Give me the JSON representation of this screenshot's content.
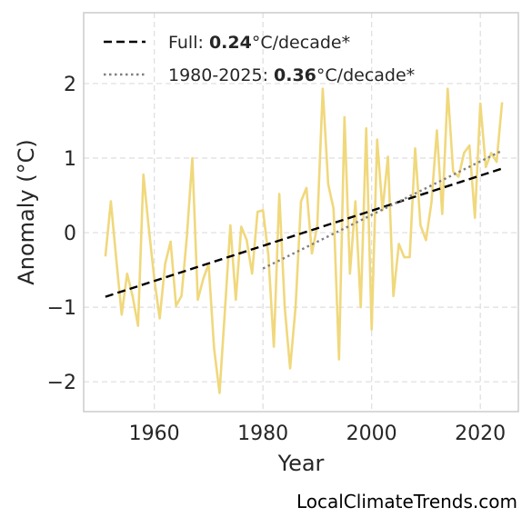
{
  "chart_data": {
    "type": "line",
    "xlabel": "Year",
    "ylabel": "Anomaly (°C)",
    "xlim": [
      1947,
      2027
    ],
    "ylim": [
      -2.4,
      2.95
    ],
    "xticks": [
      1960,
      1980,
      2000,
      2020
    ],
    "yticks": [
      -2,
      -1,
      0,
      1,
      2
    ],
    "ytick_labels": [
      "−2",
      "−1",
      "0",
      "1",
      "2"
    ],
    "grid": true,
    "legend_position": "top-left",
    "series": [
      {
        "style": "solid",
        "color": "#f0d87c",
        "x": [
          1951,
          1952,
          1953,
          1954,
          1955,
          1956,
          1957,
          1958,
          1959,
          1960,
          1961,
          1962,
          1963,
          1964,
          1965,
          1966,
          1967,
          1968,
          1969,
          1970,
          1971,
          1972,
          1973,
          1974,
          1975,
          1976,
          1977,
          1978,
          1979,
          1980,
          1981,
          1982,
          1983,
          1984,
          1985,
          1986,
          1987,
          1988,
          1989,
          1990,
          1991,
          1992,
          1993,
          1994,
          1995,
          1996,
          1997,
          1998,
          1999,
          2000,
          2001,
          2002,
          2003,
          2004,
          2005,
          2006,
          2007,
          2008,
          2009,
          2010,
          2011,
          2012,
          2013,
          2014,
          2015,
          2016,
          2017,
          2018,
          2019,
          2020,
          2021,
          2022,
          2023,
          2024
        ],
        "y": [
          -0.32,
          0.42,
          -0.35,
          -1.1,
          -0.55,
          -0.85,
          -1.25,
          0.78,
          0.05,
          -0.62,
          -1.15,
          -0.42,
          -0.12,
          -0.98,
          -0.85,
          -0.05,
          1.0,
          -0.9,
          -0.62,
          -0.42,
          -1.55,
          -2.15,
          -1.05,
          0.1,
          -0.9,
          0.08,
          -0.1,
          -0.55,
          0.28,
          0.3,
          -0.3,
          -1.53,
          0.52,
          -1.0,
          -1.82,
          -1.0,
          0.42,
          0.6,
          -0.28,
          0.1,
          1.93,
          0.65,
          0.32,
          -1.7,
          1.55,
          -0.55,
          0.42,
          -1.0,
          1.4,
          -1.3,
          1.25,
          0.3,
          1.02,
          -0.85,
          -0.15,
          -0.33,
          -0.33,
          1.13,
          0.1,
          -0.1,
          0.4,
          1.37,
          0.25,
          1.93,
          0.82,
          0.75,
          1.07,
          1.17,
          0.2,
          1.73,
          0.88,
          1.07,
          0.95,
          1.75
        ]
      },
      {
        "name": "Full",
        "style": "dashed",
        "color": "#000000",
        "x": [
          1951,
          2024
        ],
        "y": [
          -0.86,
          0.86
        ]
      },
      {
        "name": "1980-2025",
        "style": "dotted",
        "color": "#808080",
        "x": [
          1980,
          2024
        ],
        "y": [
          -0.48,
          1.1
        ]
      }
    ],
    "legend": [
      {
        "prefix": "Full: ",
        "bold": "0.24",
        "suffix": "°C/decade*"
      },
      {
        "prefix": "1980-2025: ",
        "bold": "0.36",
        "suffix": "°C/decade*"
      }
    ]
  },
  "credit": "LocalClimateTrends.com"
}
